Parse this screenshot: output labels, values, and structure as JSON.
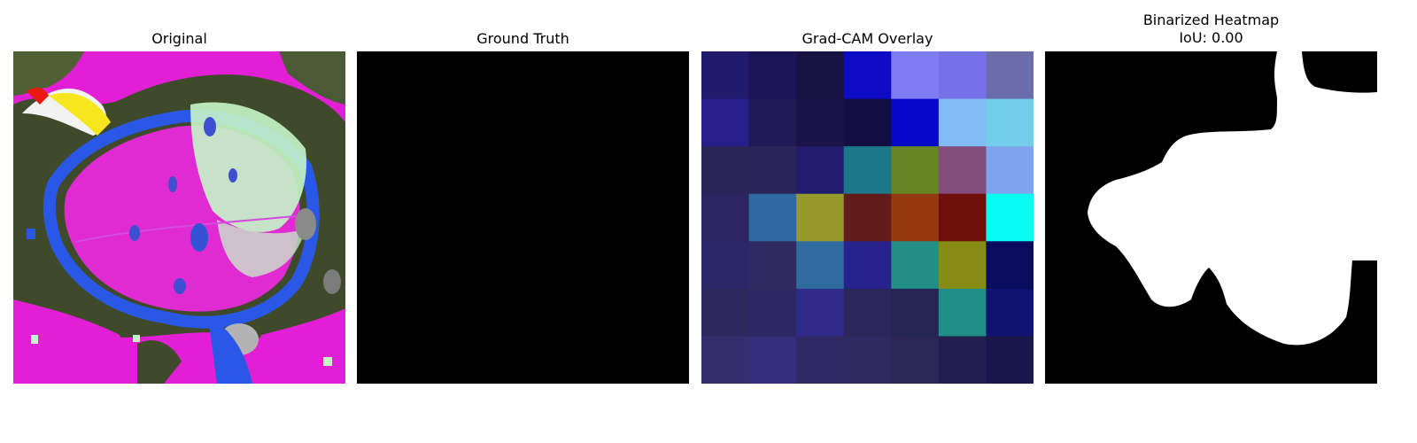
{
  "panels": [
    {
      "id": "original",
      "title": "Original"
    },
    {
      "id": "ground-truth",
      "title": "Ground Truth"
    },
    {
      "id": "gradcam",
      "title": "Grad-CAM Overlay"
    },
    {
      "id": "binarized",
      "title": "Binarized Heatmap",
      "subtitle": "IoU: 0.00"
    }
  ],
  "gradcam_grid": [
    [
      "#1f1a6b",
      "#1b1558",
      "#161241",
      "#0d0bc4",
      "#7f7cf2",
      "#7671e6",
      "#6b6dab"
    ],
    [
      "#261f8a",
      "#201a55",
      "#1a1449",
      "#130f43",
      "#0508c9",
      "#82bcf4",
      "#72cdea"
    ],
    [
      "#2b2456",
      "#2a2358",
      "#211c70",
      "#1a7888",
      "#668523",
      "#824d7b",
      "#7fa4ef"
    ],
    [
      "#2c2660",
      "#2e6aa0",
      "#959a2a",
      "#621c1c",
      "#943a0e",
      "#6e0f0a",
      "#08fcf4"
    ],
    [
      "#2c2766",
      "#302962",
      "#2e6b9f",
      "#27228c",
      "#228e86",
      "#888c17",
      "#0a0c60"
    ],
    [
      "#2e285f",
      "#2e2864",
      "#2f2a89",
      "#2b275b",
      "#252552",
      "#208e86",
      "#111372"
    ],
    [
      "#342e6c",
      "#342d7a",
      "#2f2a66",
      "#302a62",
      "#2b2656",
      "#221e50",
      "#19164a"
    ]
  ],
  "colors": {
    "mask_foreground": "#ffffff",
    "mask_background": "#000000"
  }
}
